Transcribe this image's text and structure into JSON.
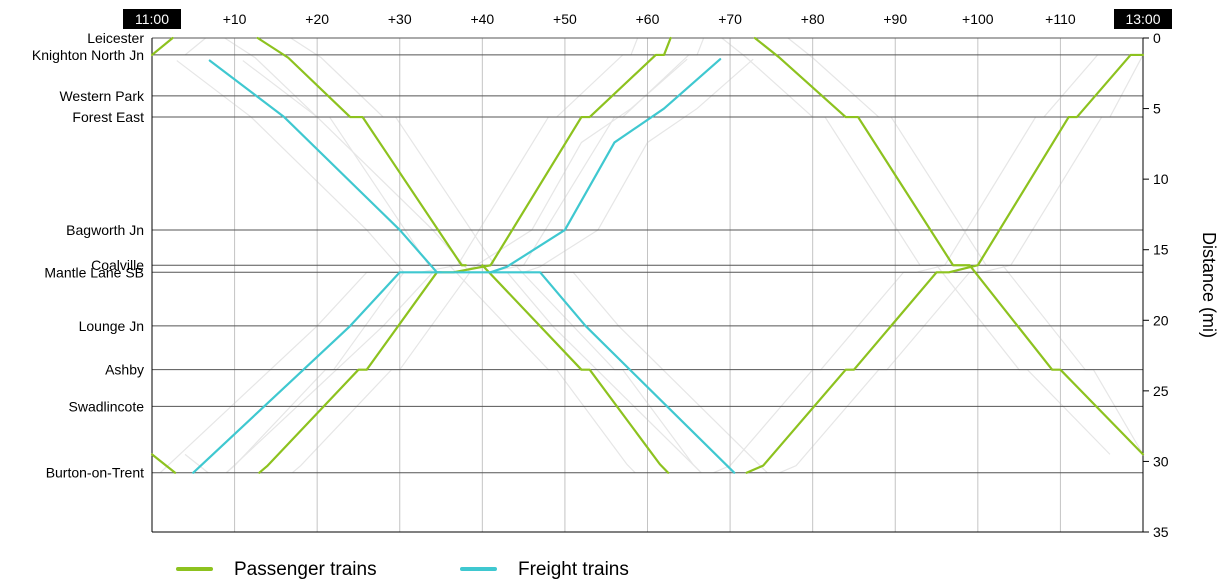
{
  "chart_data": {
    "type": "line",
    "title": "",
    "ylabel": "Distance (mi)",
    "time_axis": {
      "start_label": "11:00",
      "end_label": "13:00",
      "start_minute": 0,
      "end_minute": 120,
      "offset_ticks": [
        {
          "minute": 10,
          "label": "+10"
        },
        {
          "minute": 20,
          "label": "+20"
        },
        {
          "minute": 30,
          "label": "+30"
        },
        {
          "minute": 40,
          "label": "+40"
        },
        {
          "minute": 50,
          "label": "+50"
        },
        {
          "minute": 60,
          "label": "+60"
        },
        {
          "minute": 70,
          "label": "+70"
        },
        {
          "minute": 80,
          "label": "+80"
        },
        {
          "minute": 90,
          "label": "+90"
        },
        {
          "minute": 100,
          "label": "+100"
        },
        {
          "minute": 110,
          "label": "+110"
        }
      ]
    },
    "distance_axis": {
      "ylim": [
        0,
        35
      ],
      "ticks": [
        0,
        5,
        10,
        15,
        20,
        25,
        30,
        35
      ],
      "inverted": true
    },
    "grid": true,
    "stations": [
      {
        "name": "Leicester",
        "mi": 0
      },
      {
        "name": "Knighton North Jn",
        "mi": 1.2
      },
      {
        "name": "Western Park",
        "mi": 4.1
      },
      {
        "name": "Forest East",
        "mi": 5.6
      },
      {
        "name": "Bagworth Jn",
        "mi": 13.6
      },
      {
        "name": "Coalville",
        "mi": 16.1
      },
      {
        "name": "Mantle Lane SB",
        "mi": 16.6
      },
      {
        "name": "Lounge Jn",
        "mi": 20.4
      },
      {
        "name": "Ashby",
        "mi": 23.5
      },
      {
        "name": "Swadlincote",
        "mi": 26.1
      },
      {
        "name": "Burton-on-Trent",
        "mi": 30.8
      }
    ],
    "series": [
      {
        "name": "Passenger trains",
        "color": "#8dc21f",
        "paths": [
          [
            [
              0,
              1.2
            ],
            [
              2.5,
              0
            ]
          ],
          [
            [
              12.8,
              0
            ],
            [
              16.5,
              1.4
            ],
            [
              24,
              5.6
            ],
            [
              25.5,
              5.6
            ],
            [
              37.5,
              16.1
            ],
            [
              38,
              16.1
            ]
          ],
          [
            [
              13,
              30.8
            ],
            [
              14,
              30.3
            ],
            [
              25,
              23.5
            ],
            [
              26,
              23.5
            ],
            [
              34.5,
              16.6
            ],
            [
              36.5,
              16.6
            ],
            [
              41,
              16.1
            ],
            [
              52,
              5.6
            ],
            [
              53,
              5.6
            ],
            [
              61,
              1.2
            ],
            [
              62,
              1.2
            ],
            [
              62.8,
              0
            ]
          ],
          [
            [
              0,
              29.5
            ],
            [
              2.8,
              30.8
            ]
          ],
          [
            [
              40,
              16.1
            ],
            [
              52,
              23.5
            ],
            [
              53,
              23.5
            ],
            [
              61.5,
              30.2
            ],
            [
              62.5,
              30.8
            ]
          ],
          [
            [
              73,
              0
            ],
            [
              76,
              1.4
            ],
            [
              84,
              5.6
            ],
            [
              85.5,
              5.6
            ],
            [
              97,
              16.1
            ],
            [
              99,
              16.1
            ],
            [
              109,
              23.5
            ],
            [
              110,
              23.5
            ],
            [
              120,
              29.5
            ]
          ],
          [
            [
              72,
              30.8
            ],
            [
              74,
              30.3
            ],
            [
              84,
              23.5
            ],
            [
              85,
              23.5
            ],
            [
              95,
              16.6
            ],
            [
              96.5,
              16.6
            ],
            [
              100,
              16.1
            ],
            [
              111,
              5.6
            ],
            [
              112,
              5.6
            ],
            [
              118.5,
              1.2
            ],
            [
              120,
              1.2
            ]
          ]
        ]
      },
      {
        "name": "Freight trains",
        "color": "#3fc8d0",
        "paths": [
          [
            [
              7,
              1.6
            ],
            [
              16,
              5.6
            ],
            [
              30,
              13.6
            ],
            [
              34.5,
              16.6
            ],
            [
              35,
              16.6
            ]
          ],
          [
            [
              5,
              30.8
            ],
            [
              24,
              20.4
            ],
            [
              30,
              16.6
            ],
            [
              47,
              16.6
            ],
            [
              52.5,
              20.4
            ],
            [
              70.5,
              30.8
            ]
          ],
          [
            [
              41,
              16.6
            ],
            [
              43,
              16.2
            ],
            [
              50,
              13.6
            ],
            [
              56,
              7.4
            ],
            [
              62,
              5
            ],
            [
              68.8,
              1.5
            ]
          ]
        ]
      }
    ],
    "legend": {
      "placement": "bottom-left",
      "entries": [
        "Passenger trains",
        "Freight trains"
      ]
    }
  }
}
